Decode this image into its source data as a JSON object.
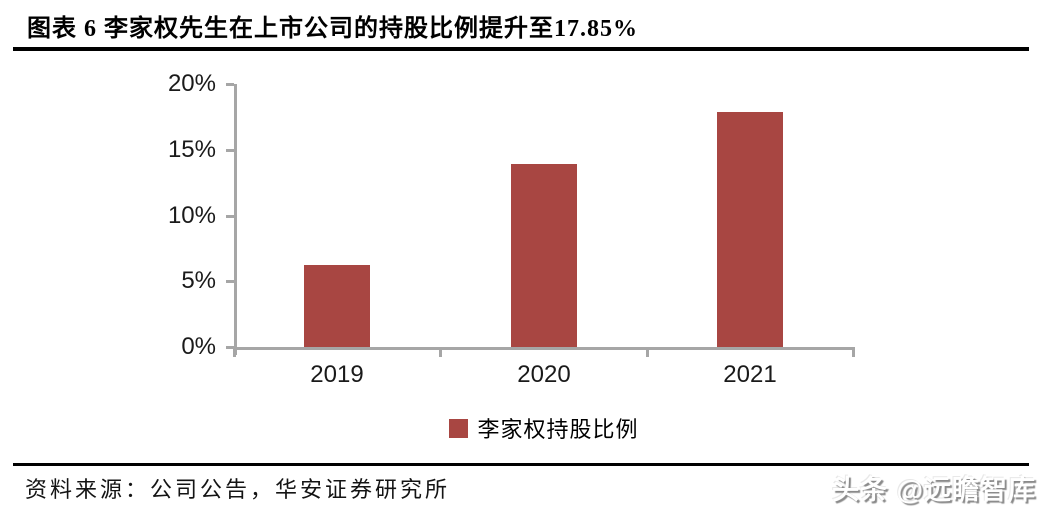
{
  "figure": {
    "title": "图表 6 李家权先生在上市公司的持股比例提升至17.85%",
    "source": "资料来源：公司公告，华安证券研究所",
    "watermark": "头条 @远瞻智库"
  },
  "colors": {
    "bar": "#a84642",
    "axis": "#a6a6a6",
    "rule": "#000000"
  },
  "chart_data": {
    "type": "bar",
    "categories": [
      "2019",
      "2020",
      "2021"
    ],
    "series": [
      {
        "name": "李家权持股比例",
        "values": [
          6.2,
          13.9,
          17.85
        ]
      }
    ],
    "title": "图表 6 李家权先生在上市公司的持股比例提升至17.85%",
    "xlabel": "",
    "ylabel": "",
    "ylim": [
      0,
      20
    ],
    "ytick_step": 5,
    "ytick_labels": [
      "0%",
      "5%",
      "10%",
      "15%",
      "20%"
    ],
    "grid": false,
    "legend_position": "bottom"
  }
}
